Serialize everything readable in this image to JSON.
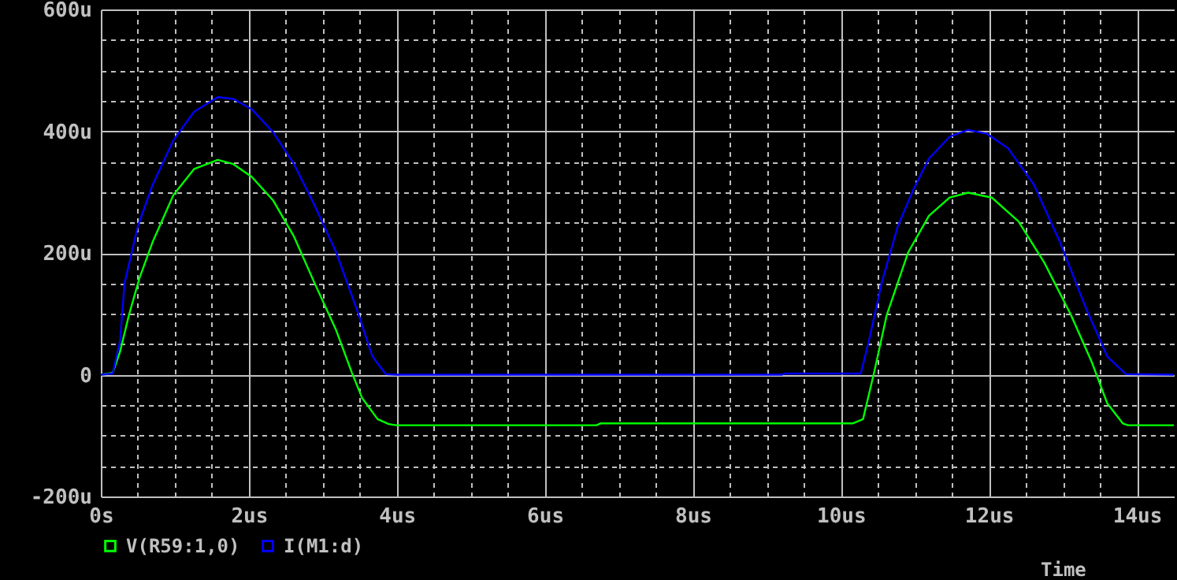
{
  "chart_data": {
    "type": "line",
    "xlabel": "Time",
    "legend": "bottom",
    "grid": true,
    "marker": "none",
    "line_style": "solid",
    "xlim": [
      0,
      14.5
    ],
    "ylim": [
      -200,
      600
    ],
    "xticks": [
      {
        "value": 0,
        "label": "0s"
      },
      {
        "value": 0.5,
        "label": null
      },
      {
        "value": 1,
        "label": null
      },
      {
        "value": 1.5,
        "label": null
      },
      {
        "value": 2,
        "label": "2us"
      },
      {
        "value": 2.5,
        "label": null
      },
      {
        "value": 3,
        "label": null
      },
      {
        "value": 3.5,
        "label": null
      },
      {
        "value": 4,
        "label": "4us"
      },
      {
        "value": 4.5,
        "label": null
      },
      {
        "value": 5,
        "label": null
      },
      {
        "value": 5.5,
        "label": null
      },
      {
        "value": 6,
        "label": "6us"
      },
      {
        "value": 6.5,
        "label": null
      },
      {
        "value": 7,
        "label": null
      },
      {
        "value": 7.5,
        "label": null
      },
      {
        "value": 8,
        "label": "8us"
      },
      {
        "value": 8.5,
        "label": null
      },
      {
        "value": 9,
        "label": null
      },
      {
        "value": 9.5,
        "label": null
      },
      {
        "value": 10,
        "label": "10us"
      },
      {
        "value": 10.5,
        "label": null
      },
      {
        "value": 11,
        "label": null
      },
      {
        "value": 11.5,
        "label": null
      },
      {
        "value": 12,
        "label": "12us"
      },
      {
        "value": 12.5,
        "label": null
      },
      {
        "value": 13,
        "label": null
      },
      {
        "value": 13.5,
        "label": null
      },
      {
        "value": 14,
        "label": "14us"
      }
    ],
    "yticks": [
      {
        "value": -200,
        "label": "-200u"
      },
      {
        "value": -150,
        "label": null
      },
      {
        "value": -100,
        "label": null
      },
      {
        "value": -50,
        "label": null
      },
      {
        "value": 0,
        "label": "0"
      },
      {
        "value": 50,
        "label": null
      },
      {
        "value": 100,
        "label": null
      },
      {
        "value": 150,
        "label": null
      },
      {
        "value": 200,
        "label": "200u"
      },
      {
        "value": 250,
        "label": null
      },
      {
        "value": 300,
        "label": null
      },
      {
        "value": 350,
        "label": null
      },
      {
        "value": 400,
        "label": "400u"
      },
      {
        "value": 450,
        "label": null
      },
      {
        "value": 500,
        "label": null
      },
      {
        "value": 550,
        "label": null
      },
      {
        "value": 600,
        "label": "600u"
      }
    ],
    "series": [
      {
        "name": "V(R59:1,0)",
        "color": "#00ff00",
        "x": [
          0,
          0.16,
          0.26,
          0.38,
          0.52,
          0.7,
          0.98,
          1.26,
          1.58,
          1.79,
          2.04,
          2.33,
          2.61,
          2.89,
          3.18,
          3.39,
          3.53,
          3.74,
          3.89,
          3.99,
          6.7,
          6.75,
          10.16,
          10.3,
          10.45,
          10.62,
          10.91,
          11.19,
          11.47,
          11.72,
          12.04,
          12.4,
          12.75,
          13.11,
          13.39,
          13.6,
          13.81,
          13.88,
          14.5
        ],
        "values": [
          0,
          3,
          38,
          98,
          158,
          218,
          295,
          338,
          353,
          346,
          325,
          286,
          227,
          150,
          73,
          4,
          -38,
          -73,
          -81,
          -83,
          -83,
          -80,
          -80,
          -73,
          4,
          98,
          201,
          261,
          291,
          299,
          291,
          252,
          184,
          98,
          21,
          -47,
          -80,
          -83,
          -83
        ]
      },
      {
        "name": "I(M1:d)",
        "color": "#0000ff",
        "x": [
          0,
          0.16,
          0.26,
          0.32,
          0.5,
          0.7,
          0.98,
          1.26,
          1.58,
          1.79,
          2.04,
          2.33,
          2.61,
          2.89,
          3.18,
          3.46,
          3.67,
          3.85,
          3.99,
          9.2,
          9.25,
          10.27,
          10.38,
          10.55,
          10.77,
          10.98,
          11.19,
          11.47,
          11.72,
          11.97,
          12.26,
          12.61,
          12.96,
          13.32,
          13.6,
          13.85,
          14.5
        ],
        "values": [
          0,
          2,
          56,
          150,
          244,
          312,
          385,
          432,
          456,
          453,
          436,
          398,
          346,
          278,
          201,
          107,
          30,
          1,
          0,
          0,
          2,
          2,
          56,
          150,
          244,
          304,
          355,
          391,
          402,
          396,
          372,
          312,
          218,
          107,
          30,
          1,
          0
        ]
      }
    ]
  }
}
